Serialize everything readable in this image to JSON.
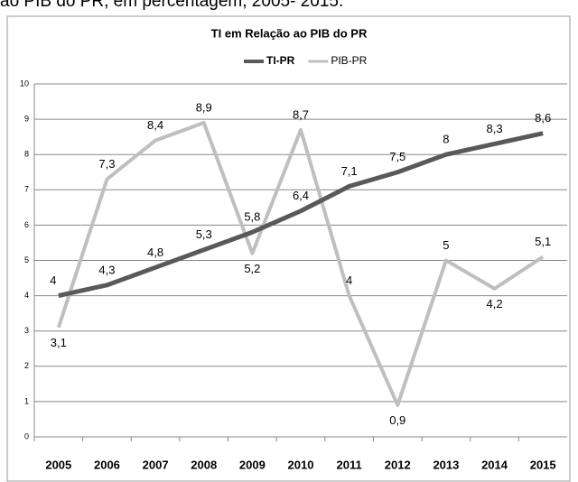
{
  "caption": "ao PIB do PR, em percentagem, 2005- 2015.",
  "chart_data": {
    "type": "line",
    "title": "TI em Relação ao PIB do PR",
    "categories": [
      "2005",
      "2006",
      "2007",
      "2008",
      "2009",
      "2010",
      "2011",
      "2012",
      "2013",
      "2014",
      "2015"
    ],
    "series": [
      {
        "name": "TI-PR",
        "color": "#595959",
        "values": [
          4,
          4.3,
          4.8,
          5.3,
          5.8,
          6.4,
          7.1,
          7.5,
          8,
          8.3,
          8.6
        ],
        "value_labels": [
          "4",
          "4,3",
          "4,8",
          "5,3",
          "5,8",
          "6,4",
          "7,1",
          "7,5",
          "8",
          "8,3",
          "8,6"
        ]
      },
      {
        "name": "PIB-PR",
        "color": "#bfbfbf",
        "values": [
          3.1,
          7.3,
          8.4,
          8.9,
          5.2,
          8.7,
          4,
          0.9,
          5,
          4.2,
          5.1
        ],
        "value_labels": [
          "3,1",
          "7,3",
          "8,4",
          "8,9",
          "5,2",
          "8,7",
          "4",
          "0,9",
          "5",
          "4,2",
          "5,1"
        ]
      }
    ],
    "ylim": [
      0,
      10
    ],
    "yticks": [
      0,
      1,
      2,
      3,
      4,
      5,
      6,
      7,
      8,
      9,
      10
    ],
    "grid": true,
    "legend": "top"
  }
}
